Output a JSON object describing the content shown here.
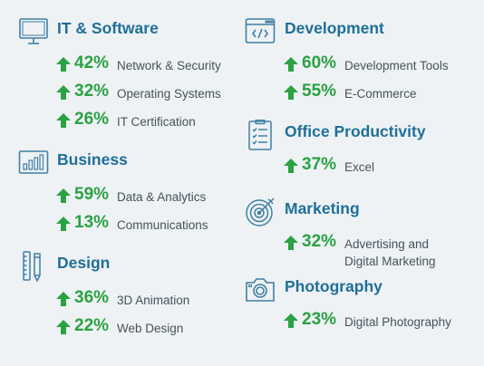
{
  "colors": {
    "title": "#1f6f99",
    "percent": "#2aa243",
    "label": "#45535b",
    "icon": "#3f7fa3",
    "background": "#eef2f4"
  },
  "left": [
    {
      "icon": "monitor-icon",
      "title": "IT & Software",
      "stats": [
        {
          "pct": "42%",
          "label": "Network & Security"
        },
        {
          "pct": "32%",
          "label": "Operating Systems"
        },
        {
          "pct": "26%",
          "label": "IT Certification"
        }
      ]
    },
    {
      "icon": "bar-chart-icon",
      "title": "Business",
      "stats": [
        {
          "pct": "59%",
          "label": "Data & Analytics"
        },
        {
          "pct": "13%",
          "label": "Communications"
        }
      ]
    },
    {
      "icon": "ruler-pencil-icon",
      "title": "Design",
      "stats": [
        {
          "pct": "36%",
          "label": "3D Animation"
        },
        {
          "pct": "22%",
          "label": "Web Design"
        }
      ]
    }
  ],
  "right": [
    {
      "icon": "code-window-icon",
      "title": "Development",
      "stats": [
        {
          "pct": "60%",
          "label": "Development Tools"
        },
        {
          "pct": "55%",
          "label": "E-Commerce"
        }
      ]
    },
    {
      "icon": "clipboard-checklist-icon",
      "title": "Office Productivity",
      "stats": [
        {
          "pct": "37%",
          "label": "Excel"
        }
      ]
    },
    {
      "icon": "target-icon",
      "title": "Marketing",
      "stats": [
        {
          "pct": "32%",
          "label_line1": "Advertising and",
          "label_line2": "Digital Marketing"
        }
      ]
    },
    {
      "icon": "camera-icon",
      "title": "Photography",
      "stats": [
        {
          "pct": "23%",
          "label": "Digital Photography"
        }
      ]
    }
  ]
}
